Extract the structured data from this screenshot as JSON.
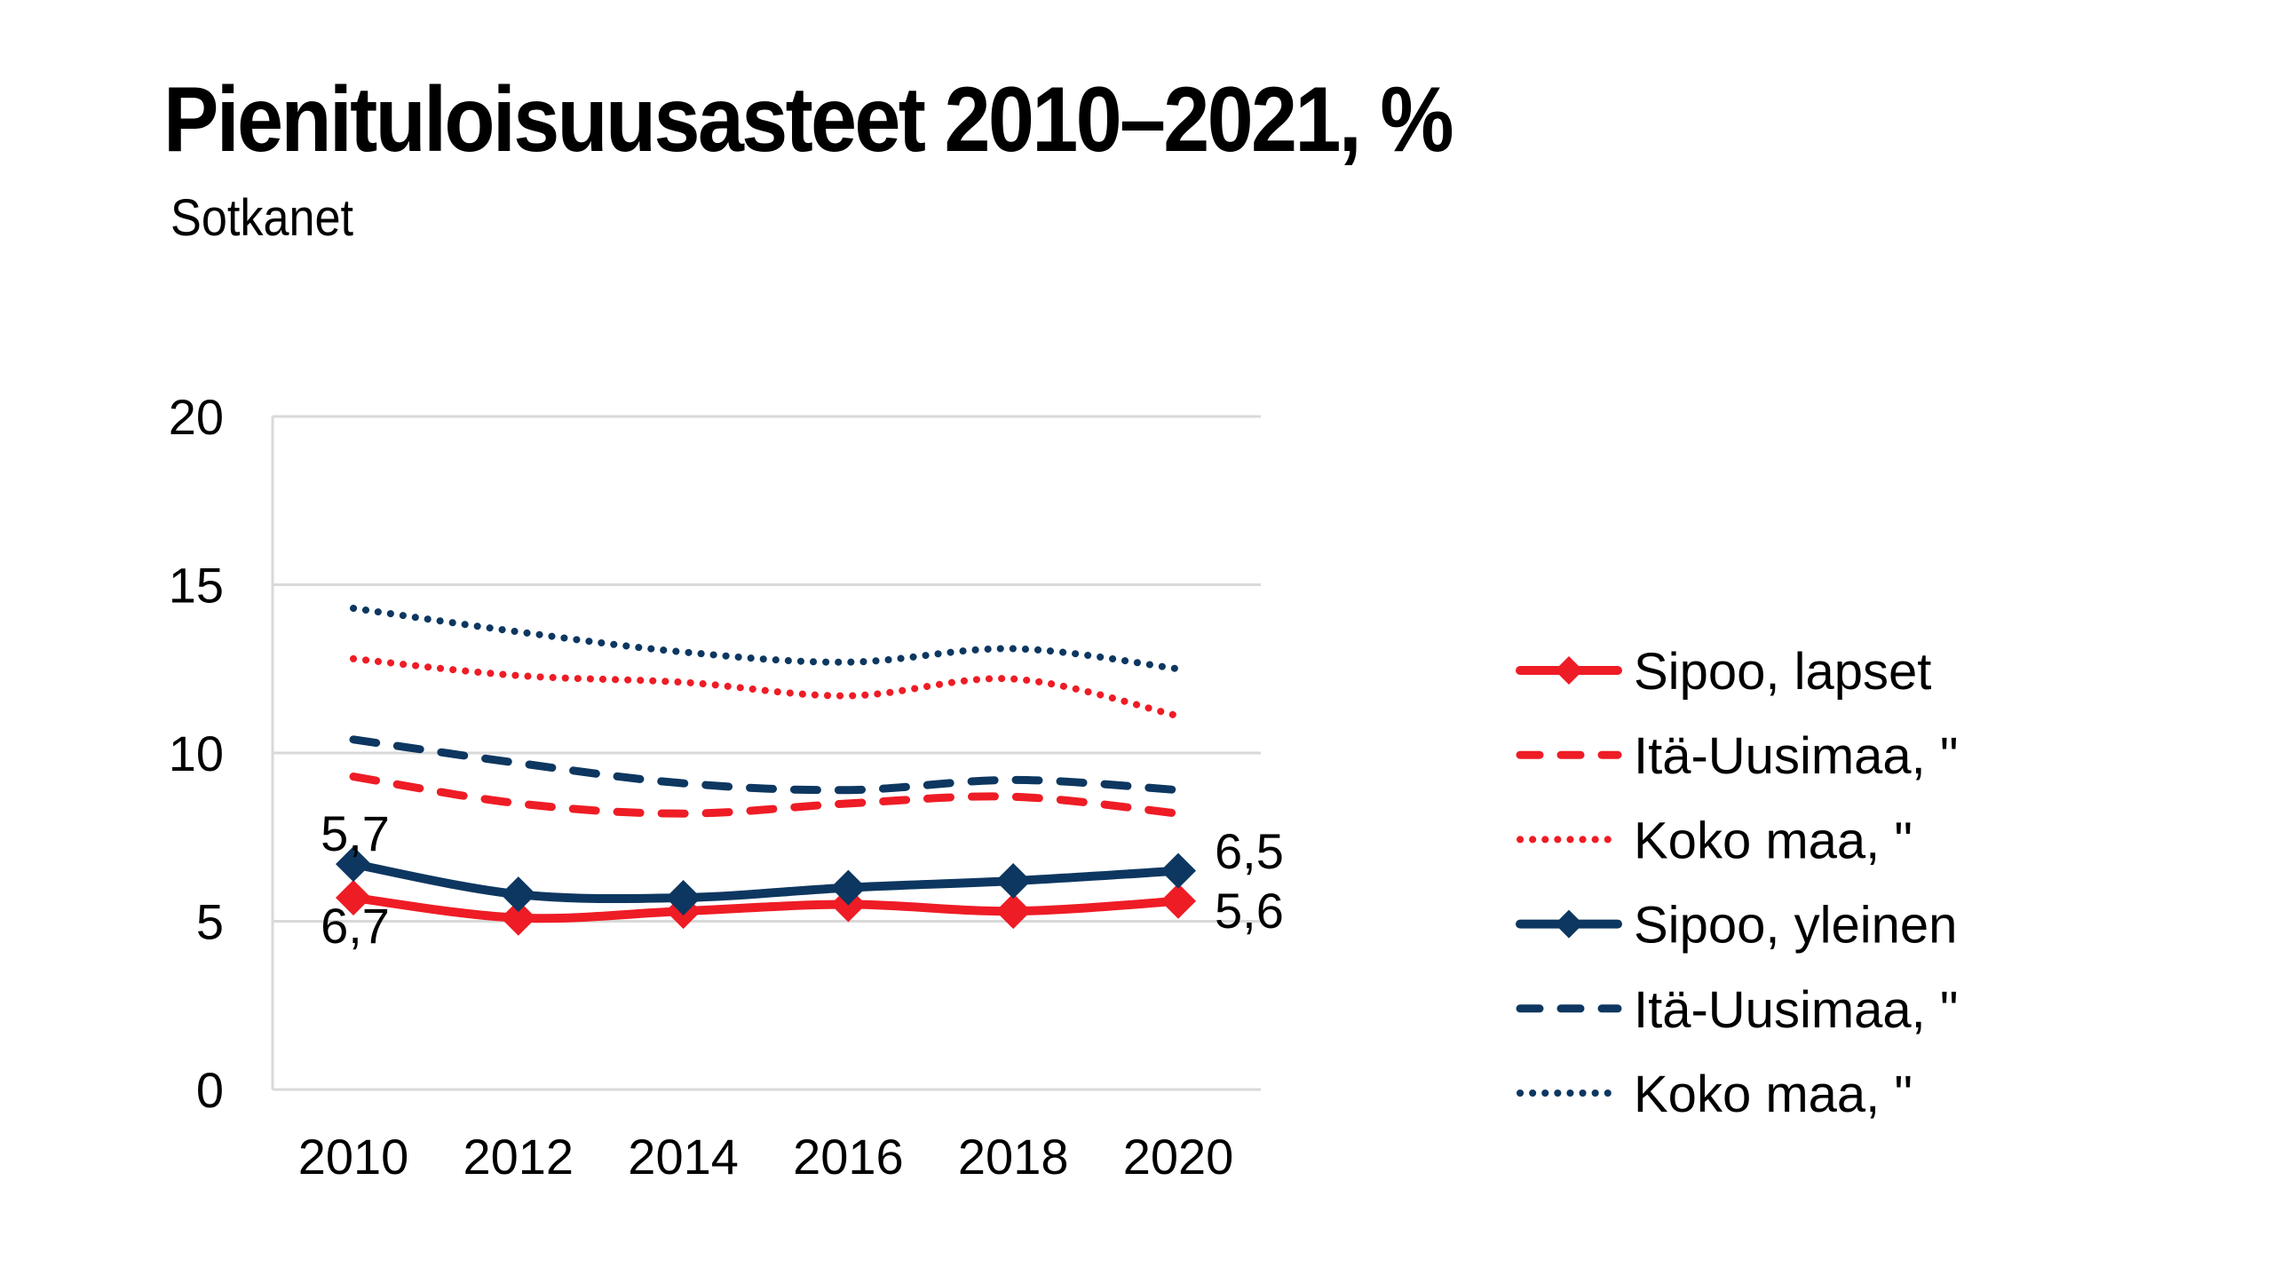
{
  "chart_data": {
    "type": "line",
    "title": "Pienituloisuusasteet 2010–2021, %",
    "subtitle": "Sotkanet",
    "xlabel": "",
    "ylabel": "",
    "x": [
      2010,
      2012,
      2014,
      2016,
      2018,
      2020
    ],
    "x_tick_labels": [
      "2010",
      "2012",
      "2014",
      "2016",
      "2018",
      "2020"
    ],
    "ylim": [
      0,
      20
    ],
    "y_ticks": [
      0,
      5,
      10,
      15,
      20
    ],
    "y_tick_labels": [
      "0",
      "5",
      "10",
      "15",
      "20"
    ],
    "grid": true,
    "legend_position": "right",
    "series": [
      {
        "name": "Sipoo, lapset",
        "color": "#ee1c25",
        "style": "solid",
        "marker": "diamond",
        "values": [
          5.7,
          5.1,
          5.3,
          5.5,
          5.3,
          5.6
        ]
      },
      {
        "name": "Itä-Uusimaa, \"",
        "color": "#ee1c25",
        "style": "dashed",
        "marker": "none",
        "values": [
          9.3,
          8.5,
          8.2,
          8.5,
          8.7,
          8.2
        ]
      },
      {
        "name": "Koko maa, \"",
        "color": "#ee1c25",
        "style": "dotted",
        "marker": "none",
        "values": [
          12.8,
          12.3,
          12.1,
          11.7,
          12.2,
          11.1
        ]
      },
      {
        "name": "Sipoo, yleinen",
        "color": "#0d3760",
        "style": "solid",
        "marker": "diamond",
        "values": [
          6.7,
          5.8,
          5.7,
          6.0,
          6.2,
          6.5
        ]
      },
      {
        "name": "Itä-Uusimaa, \"",
        "color": "#0d3760",
        "style": "dashed",
        "marker": "none",
        "values": [
          10.4,
          9.7,
          9.1,
          8.9,
          9.2,
          8.9
        ]
      },
      {
        "name": "Koko maa, \"",
        "color": "#0d3760",
        "style": "dotted",
        "marker": "none",
        "values": [
          14.3,
          13.6,
          13.0,
          12.7,
          13.1,
          12.5
        ]
      }
    ],
    "annotations": [
      {
        "text": "5,7",
        "series": "Sipoo, lapset",
        "x": 2010,
        "position": "above"
      },
      {
        "text": "6,7",
        "series": "Sipoo, yleinen",
        "x": 2010,
        "position": "below"
      },
      {
        "text": "6,5",
        "series": "Sipoo, yleinen",
        "x": 2020,
        "position": "right"
      },
      {
        "text": "5,6",
        "series": "Sipoo, lapset",
        "x": 2020,
        "position": "right"
      }
    ]
  }
}
